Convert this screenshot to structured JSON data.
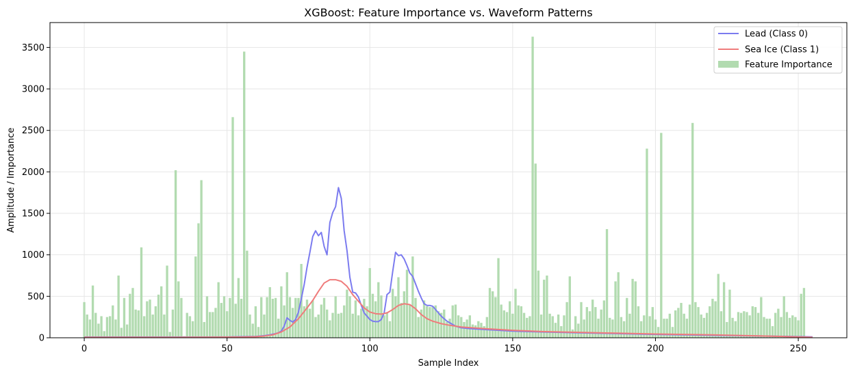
{
  "chart_data": {
    "type": "bar",
    "title": "XGBoost: Feature Importance vs. Waveform Patterns",
    "xlabel": "Sample Index",
    "ylabel": "Amplitude / Importance",
    "xlim": [
      -12,
      267
    ],
    "ylim": [
      0,
      3800
    ],
    "xticks": [
      0,
      50,
      100,
      150,
      200,
      250
    ],
    "yticks": [
      0,
      500,
      1000,
      1500,
      2000,
      2500,
      3000,
      3500
    ],
    "grid": true,
    "legend_position": "top-right",
    "bar_series": {
      "name": "Feature Importance",
      "color": "#b2dbb0",
      "x_start": 0,
      "values": [
        430,
        280,
        220,
        630,
        300,
        170,
        260,
        80,
        250,
        260,
        390,
        220,
        750,
        120,
        480,
        160,
        530,
        600,
        340,
        330,
        1090,
        260,
        440,
        460,
        280,
        380,
        520,
        620,
        280,
        870,
        70,
        340,
        2020,
        680,
        480,
        20,
        300,
        260,
        200,
        980,
        1380,
        1900,
        190,
        500,
        310,
        310,
        360,
        670,
        420,
        500,
        320,
        480,
        2660,
        410,
        720,
        470,
        3450,
        1050,
        280,
        170,
        380,
        130,
        490,
        280,
        490,
        610,
        470,
        480,
        230,
        620,
        390,
        790,
        490,
        360,
        480,
        480,
        890,
        380,
        460,
        350,
        450,
        250,
        280,
        400,
        480,
        340,
        210,
        300,
        500,
        290,
        300,
        390,
        580,
        500,
        290,
        450,
        270,
        350,
        470,
        380,
        840,
        530,
        440,
        670,
        510,
        270,
        310,
        200,
        590,
        500,
        730,
        420,
        560,
        820,
        400,
        980,
        480,
        250,
        340,
        450,
        380,
        370,
        370,
        390,
        320,
        300,
        340,
        190,
        230,
        390,
        400,
        270,
        250,
        190,
        220,
        270,
        160,
        150,
        200,
        180,
        140,
        250,
        600,
        560,
        490,
        960,
        400,
        330,
        310,
        440,
        290,
        590,
        390,
        380,
        300,
        240,
        260,
        3630,
        2100,
        810,
        280,
        700,
        750,
        290,
        260,
        180,
        280,
        140,
        270,
        430,
        740,
        100,
        260,
        170,
        430,
        220,
        370,
        320,
        460,
        370,
        230,
        340,
        450,
        1310,
        240,
        220,
        680,
        790,
        250,
        200,
        480,
        290,
        710,
        680,
        380,
        200,
        270,
        2280,
        260,
        370,
        220,
        130,
        2470,
        230,
        230,
        290,
        130,
        330,
        360,
        420,
        290,
        230,
        400,
        2590,
        430,
        370,
        280,
        240,
        300,
        380,
        470,
        440,
        770,
        320,
        670,
        190,
        580,
        240,
        200,
        310,
        300,
        320,
        310,
        270,
        380,
        370,
        300,
        490,
        250,
        230,
        230,
        140,
        300,
        350,
        250,
        500,
        310,
        240,
        270,
        250,
        210,
        530,
        600
      ]
    },
    "line_series": [
      {
        "name": "Lead (Class 0)",
        "color": "#7b7bef",
        "points": [
          [
            0,
            8
          ],
          [
            10,
            8
          ],
          [
            20,
            8
          ],
          [
            30,
            8
          ],
          [
            40,
            8
          ],
          [
            50,
            9
          ],
          [
            55,
            12
          ],
          [
            60,
            15
          ],
          [
            63,
            25
          ],
          [
            65,
            35
          ],
          [
            67,
            50
          ],
          [
            68,
            60
          ],
          [
            69,
            80
          ],
          [
            70,
            140
          ],
          [
            71,
            240
          ],
          [
            72,
            210
          ],
          [
            73,
            190
          ],
          [
            74,
            220
          ],
          [
            75,
            310
          ],
          [
            76,
            470
          ],
          [
            77,
            640
          ],
          [
            78,
            850
          ],
          [
            79,
            1030
          ],
          [
            80,
            1220
          ],
          [
            81,
            1290
          ],
          [
            82,
            1230
          ],
          [
            83,
            1270
          ],
          [
            84,
            1100
          ],
          [
            85,
            1000
          ],
          [
            86,
            1390
          ],
          [
            87,
            1510
          ],
          [
            88,
            1580
          ],
          [
            89,
            1810
          ],
          [
            90,
            1680
          ],
          [
            91,
            1290
          ],
          [
            92,
            1050
          ],
          [
            93,
            730
          ],
          [
            94,
            550
          ],
          [
            95,
            540
          ],
          [
            96,
            490
          ],
          [
            97,
            390
          ],
          [
            98,
            300
          ],
          [
            99,
            260
          ],
          [
            100,
            220
          ],
          [
            101,
            200
          ],
          [
            102,
            195
          ],
          [
            103,
            195
          ],
          [
            104,
            220
          ],
          [
            105,
            300
          ],
          [
            106,
            520
          ],
          [
            107,
            550
          ],
          [
            108,
            800
          ],
          [
            109,
            1030
          ],
          [
            110,
            990
          ],
          [
            111,
            1000
          ],
          [
            112,
            950
          ],
          [
            113,
            870
          ],
          [
            114,
            780
          ],
          [
            115,
            740
          ],
          [
            116,
            650
          ],
          [
            117,
            560
          ],
          [
            118,
            480
          ],
          [
            119,
            410
          ],
          [
            120,
            390
          ],
          [
            121,
            390
          ],
          [
            122,
            380
          ],
          [
            123,
            340
          ],
          [
            124,
            300
          ],
          [
            125,
            260
          ],
          [
            126,
            230
          ],
          [
            127,
            200
          ],
          [
            128,
            180
          ],
          [
            129,
            160
          ],
          [
            130,
            140
          ],
          [
            132,
            120
          ],
          [
            135,
            110
          ],
          [
            140,
            100
          ],
          [
            150,
            80
          ],
          [
            160,
            70
          ],
          [
            180,
            55
          ],
          [
            200,
            40
          ],
          [
            220,
            30
          ],
          [
            240,
            20
          ],
          [
            255,
            10
          ]
        ]
      },
      {
        "name": "Sea Ice (Class 1)",
        "color": "#ef7b7b",
        "points": [
          [
            0,
            5
          ],
          [
            20,
            5
          ],
          [
            40,
            6
          ],
          [
            55,
            8
          ],
          [
            60,
            12
          ],
          [
            63,
            20
          ],
          [
            66,
            35
          ],
          [
            69,
            70
          ],
          [
            72,
            130
          ],
          [
            75,
            230
          ],
          [
            78,
            360
          ],
          [
            80,
            450
          ],
          [
            82,
            560
          ],
          [
            84,
            660
          ],
          [
            86,
            700
          ],
          [
            88,
            700
          ],
          [
            90,
            680
          ],
          [
            92,
            620
          ],
          [
            94,
            520
          ],
          [
            96,
            440
          ],
          [
            98,
            360
          ],
          [
            100,
            310
          ],
          [
            102,
            290
          ],
          [
            104,
            285
          ],
          [
            106,
            300
          ],
          [
            108,
            340
          ],
          [
            110,
            390
          ],
          [
            112,
            410
          ],
          [
            114,
            400
          ],
          [
            116,
            350
          ],
          [
            118,
            280
          ],
          [
            120,
            230
          ],
          [
            122,
            200
          ],
          [
            125,
            170
          ],
          [
            128,
            150
          ],
          [
            132,
            130
          ],
          [
            136,
            120
          ],
          [
            140,
            110
          ],
          [
            150,
            90
          ],
          [
            160,
            75
          ],
          [
            180,
            60
          ],
          [
            200,
            45
          ],
          [
            220,
            35
          ],
          [
            240,
            20
          ],
          [
            255,
            5
          ]
        ]
      }
    ]
  }
}
